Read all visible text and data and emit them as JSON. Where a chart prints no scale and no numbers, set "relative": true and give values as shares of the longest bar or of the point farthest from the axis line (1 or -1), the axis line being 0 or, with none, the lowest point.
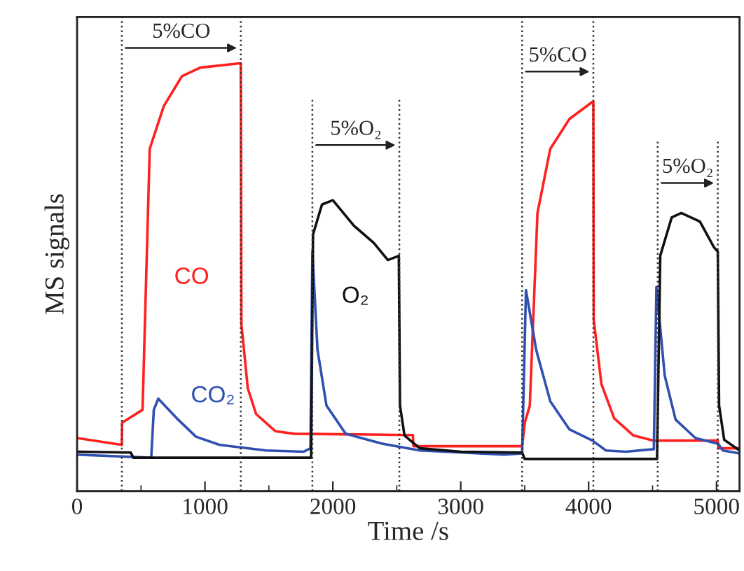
{
  "chart_data": {
    "type": "line",
    "relative": true,
    "xlabel": "Time /s",
    "ylabel": "MS signals",
    "xlim": [
      0,
      5180
    ],
    "xticks": [
      0,
      {
        "value": 500,
        "label": null
      },
      1000,
      {
        "value": 1500,
        "label": null
      },
      2000,
      {
        "value": 2500,
        "label": null
      },
      3000,
      {
        "value": 3500,
        "label": null
      },
      4000,
      {
        "value": 4500,
        "label": null
      },
      5000
    ],
    "grid": false,
    "legend": false,
    "marker": "none",
    "line_style": "solid",
    "series": [
      {
        "name": "CO",
        "color": "#ff2020",
        "x": [
          0,
          350,
          352,
          512,
          568,
          678,
          820,
          963,
          1270,
          1280,
          1285,
          1335,
          1400,
          1550,
          1700,
          2626,
          2630,
          3480,
          3501,
          3540,
          3600,
          3700,
          3850,
          4030,
          4037,
          4040,
          4100,
          4200,
          4350,
          4508,
          5010,
          5015,
          5180
        ],
        "values": [
          0.124,
          0.108,
          0.16,
          0.19,
          0.8,
          0.9,
          0.97,
          0.99,
          1.0,
          1.0,
          0.39,
          0.24,
          0.18,
          0.14,
          0.134,
          0.131,
          0.105,
          0.105,
          0.16,
          0.2,
          0.65,
          0.8,
          0.87,
          0.91,
          0.91,
          0.4,
          0.25,
          0.17,
          0.13,
          0.118,
          0.118,
          0.1,
          0.1
        ]
      },
      {
        "name": "CO₂",
        "color": "#3050b0",
        "x": [
          0,
          580,
          600,
          635,
          790,
          930,
          1115,
          1477,
          1770,
          1825,
          1840,
          1880,
          1950,
          2100,
          2385,
          2680,
          3340,
          3480,
          3510,
          3590,
          3700,
          3850,
          4030,
          4135,
          4290,
          4510,
          4530,
          4595,
          4680,
          4835,
          5010,
          5050,
          5180
        ],
        "values": [
          0.085,
          0.078,
          0.19,
          0.216,
          0.167,
          0.127,
          0.108,
          0.095,
          0.092,
          0.1,
          0.56,
          0.33,
          0.2,
          0.134,
          0.111,
          0.095,
          0.085,
          0.088,
          0.47,
          0.33,
          0.21,
          0.144,
          0.118,
          0.095,
          0.092,
          0.098,
          0.477,
          0.27,
          0.167,
          0.124,
          0.111,
          0.095,
          0.088
        ]
      },
      {
        "name": "O₂",
        "color": "#101010",
        "x": [
          0,
          420,
          440,
          1830,
          1845,
          1915,
          2000,
          2166,
          2320,
          2430,
          2516,
          2525,
          2560,
          2680,
          3000,
          3480,
          3500,
          4535,
          4560,
          4650,
          4725,
          4870,
          4980,
          5010,
          5020,
          5060,
          5180
        ],
        "values": [
          0.092,
          0.09,
          0.078,
          0.078,
          0.6,
          0.67,
          0.68,
          0.62,
          0.58,
          0.54,
          0.55,
          0.2,
          0.13,
          0.1,
          0.092,
          0.09,
          0.075,
          0.075,
          0.55,
          0.64,
          0.65,
          0.63,
          0.57,
          0.56,
          0.2,
          0.12,
          0.095
        ]
      }
    ],
    "ref_lines": [
      {
        "axis": "x",
        "value": 350,
        "line_style": "dotted",
        "color": "#333333"
      },
      {
        "axis": "x",
        "value": 1280,
        "line_style": "dotted",
        "color": "#333333"
      },
      {
        "axis": "x",
        "value": 1840,
        "line_style": "dotted",
        "color": "#333333"
      },
      {
        "axis": "x",
        "value": 2520,
        "line_style": "dotted",
        "color": "#333333"
      },
      {
        "axis": "x",
        "value": 3480,
        "line_style": "dotted",
        "color": "#333333"
      },
      {
        "axis": "x",
        "value": 4037,
        "line_style": "dotted",
        "color": "#333333"
      },
      {
        "axis": "x",
        "value": 4540,
        "line_style": "dotted",
        "color": "#333333"
      },
      {
        "axis": "x",
        "value": 5010,
        "line_style": "dotted",
        "color": "#333333"
      }
    ],
    "annotations": [
      "5%CO",
      "5%O₂",
      "5%CO",
      "5%O₂"
    ]
  }
}
